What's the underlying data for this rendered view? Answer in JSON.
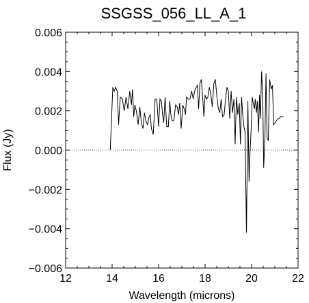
{
  "chart_data": {
    "type": "line",
    "title": "SSGSS_056_LL_A_1",
    "xlabel": "Wavelength (microns)",
    "ylabel": "Flux (Jy)",
    "xlim": [
      12,
      22
    ],
    "ylim": [
      -0.006,
      0.006
    ],
    "xticks": [
      12,
      14,
      16,
      18,
      20,
      22
    ],
    "xtick_labels": [
      "12",
      "14",
      "16",
      "18",
      "20",
      "22"
    ],
    "yticks": [
      -0.006,
      -0.004,
      -0.002,
      0.0,
      0.002,
      0.004,
      0.006
    ],
    "ytick_labels": [
      "−0.006",
      "−0.004",
      "−0.002",
      "0.000",
      "0.002",
      "0.004",
      "0.006"
    ],
    "grid": false,
    "reference_line": {
      "y": 0.0,
      "style": "dotted"
    },
    "series": [
      {
        "color": "#000000",
        "x": [
          13.92,
          14.03,
          14.09,
          14.15,
          14.22,
          14.28,
          14.35,
          14.44,
          14.52,
          14.6,
          14.68,
          14.76,
          14.83,
          14.88,
          14.93,
          14.98,
          15.04,
          15.12,
          15.19,
          15.26,
          15.33,
          15.39,
          15.45,
          15.52,
          15.59,
          15.64,
          15.69,
          15.77,
          15.85,
          15.92,
          16.0,
          16.06,
          16.12,
          16.17,
          16.22,
          16.28,
          16.35,
          16.42,
          16.48,
          16.53,
          16.58,
          16.66,
          16.73,
          16.8,
          16.86,
          16.91,
          16.97,
          17.04,
          17.1,
          17.16,
          17.2,
          17.28,
          17.35,
          17.42,
          17.49,
          17.55,
          17.62,
          17.67,
          17.72,
          17.78,
          17.84,
          17.9,
          17.95,
          18.0,
          18.06,
          18.12,
          18.18,
          18.24,
          18.31,
          18.38,
          18.44,
          18.51,
          18.57,
          18.63,
          18.69,
          18.75,
          18.82,
          18.88,
          18.94,
          19.0,
          19.06,
          19.12,
          19.18,
          19.24,
          19.29,
          19.35,
          19.41,
          19.47,
          19.52,
          19.57,
          19.62,
          19.67,
          19.72,
          19.78,
          19.84,
          19.89,
          19.93,
          19.98,
          20.03,
          20.07,
          20.12,
          20.16,
          20.21,
          20.25,
          20.3,
          20.34,
          20.38,
          20.43,
          20.48,
          20.52,
          20.57,
          20.62,
          20.67,
          20.72,
          20.78,
          20.84,
          20.9,
          20.95,
          21.02,
          21.07,
          21.13,
          21.19,
          21.25,
          21.31,
          21.38
        ],
        "y": [
          0.0,
          0.0032,
          0.003,
          0.0032,
          0.003,
          0.0013,
          0.0027,
          0.0026,
          0.002,
          0.0027,
          0.0021,
          0.003,
          0.0023,
          0.0031,
          0.0017,
          0.0023,
          0.002,
          0.0013,
          0.0022,
          0.0014,
          0.0011,
          0.0019,
          0.0015,
          0.0013,
          0.0017,
          0.0018,
          0.0011,
          0.0008,
          0.0026,
          0.0026,
          0.0012,
          0.0026,
          0.0025,
          0.0018,
          0.0014,
          0.0027,
          0.0012,
          0.0012,
          0.0025,
          0.0018,
          0.0015,
          0.0015,
          0.0023,
          0.0022,
          0.0018,
          0.0024,
          0.0011,
          0.0023,
          0.0021,
          0.0018,
          0.0027,
          0.0026,
          0.0026,
          0.003,
          0.0026,
          0.003,
          0.0032,
          0.0033,
          0.0021,
          0.0034,
          0.0036,
          0.0026,
          0.0017,
          0.0028,
          0.0026,
          0.0027,
          0.0032,
          0.0029,
          0.0022,
          0.0034,
          0.0036,
          0.0027,
          0.0021,
          0.0019,
          0.0026,
          0.0017,
          0.0018,
          0.0026,
          0.0032,
          0.003,
          0.0016,
          0.003,
          0.0019,
          0.0026,
          0.0003,
          0.0027,
          0.0018,
          0.0024,
          0.0003,
          0.0027,
          0.0018,
          0.0012,
          0.0009,
          -0.0042,
          0.0025,
          -0.0016,
          -0.0002,
          0.001,
          0.0027,
          0.0024,
          0.0021,
          0.0026,
          0.0019,
          0.0025,
          0.0009,
          0.0028,
          0.0016,
          0.004,
          0.0028,
          -0.0009,
          0.0004,
          0.0039,
          0.0006,
          0.0005,
          0.0036,
          0.0031,
          0.0033,
          0.0013,
          0.0014,
          0.0015,
          0.0016,
          0.0016,
          0.0017,
          0.0017,
          0.0017
        ]
      }
    ]
  }
}
